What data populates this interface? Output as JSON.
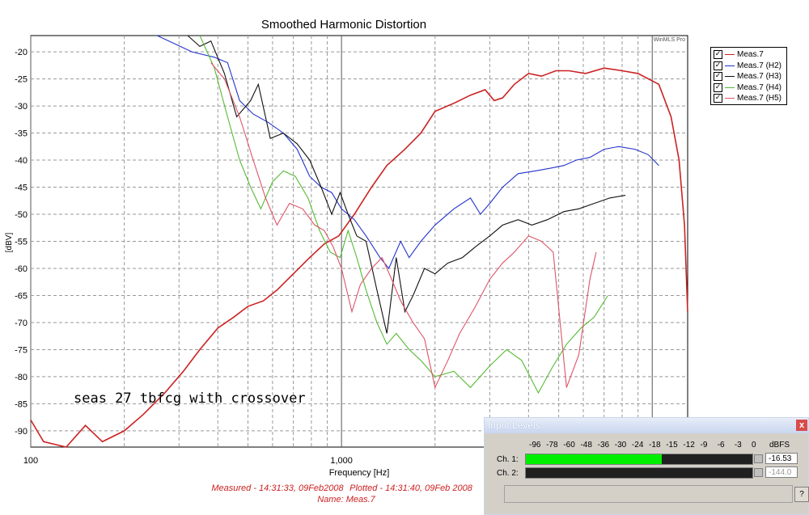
{
  "chart_data": {
    "type": "line",
    "title": "Smoothed Harmonic Distortion",
    "xlabel": "Frequency [Hz]",
    "ylabel": "[dBV]",
    "x_scale": "log",
    "xlim": [
      100,
      13000
    ],
    "ylim": [
      -93,
      -17
    ],
    "x_ticks": [
      {
        "value": 100,
        "label": "100"
      },
      {
        "value": 1000,
        "label": "1,000"
      }
    ],
    "y_ticks": [
      -20,
      -25,
      -30,
      -35,
      -40,
      -45,
      -50,
      -55,
      -60,
      -65,
      -70,
      -75,
      -80,
      -85,
      -90
    ],
    "grid": true,
    "watermark": "WinMLS Pro",
    "annotation": "seas 27 tbfcg with crossover",
    "footer": {
      "measured": "Measured - 14:31:33, 09Feb2008",
      "plotted": "Plotted - 14:31:40, 09Feb 2008",
      "name": "Name: Meas.7"
    },
    "legend_position": "right",
    "series": [
      {
        "name": "Meas.7",
        "color": "#cc2222",
        "points": [
          [
            100,
            -88
          ],
          [
            110,
            -92
          ],
          [
            130,
            -93
          ],
          [
            150,
            -89
          ],
          [
            170,
            -92
          ],
          [
            200,
            -90
          ],
          [
            230,
            -87
          ],
          [
            270,
            -83
          ],
          [
            310,
            -79
          ],
          [
            350,
            -75
          ],
          [
            400,
            -71
          ],
          [
            450,
            -69
          ],
          [
            500,
            -67
          ],
          [
            560,
            -66
          ],
          [
            620,
            -64
          ],
          [
            700,
            -61
          ],
          [
            790,
            -58
          ],
          [
            880,
            -55.5
          ],
          [
            980,
            -54
          ],
          [
            1100,
            -50
          ],
          [
            1250,
            -45
          ],
          [
            1400,
            -41
          ],
          [
            1600,
            -38
          ],
          [
            1800,
            -35
          ],
          [
            2000,
            -31
          ],
          [
            2300,
            -29.5
          ],
          [
            2600,
            -28
          ],
          [
            2900,
            -27
          ],
          [
            3100,
            -29
          ],
          [
            3300,
            -28.5
          ],
          [
            3600,
            -26
          ],
          [
            4000,
            -24
          ],
          [
            4400,
            -24.5
          ],
          [
            4900,
            -23.5
          ],
          [
            5400,
            -23.5
          ],
          [
            6100,
            -24
          ],
          [
            7000,
            -23
          ],
          [
            8000,
            -23.5
          ],
          [
            9000,
            -24
          ],
          [
            10500,
            -26
          ],
          [
            11500,
            -32
          ],
          [
            12200,
            -40
          ],
          [
            12700,
            -52
          ],
          [
            13000,
            -68
          ]
        ]
      },
      {
        "name": "Meas.7 (H2)",
        "color": "#2233cc",
        "points": [
          [
            255,
            -17
          ],
          [
            290,
            -18.5
          ],
          [
            330,
            -20
          ],
          [
            390,
            -21
          ],
          [
            430,
            -22
          ],
          [
            470,
            -29
          ],
          [
            520,
            -31.5
          ],
          [
            580,
            -33
          ],
          [
            650,
            -35
          ],
          [
            720,
            -38
          ],
          [
            790,
            -43
          ],
          [
            860,
            -45
          ],
          [
            930,
            -46
          ],
          [
            1000,
            -49
          ],
          [
            1100,
            -51
          ],
          [
            1200,
            -54
          ],
          [
            1330,
            -58
          ],
          [
            1420,
            -60
          ],
          [
            1550,
            -55
          ],
          [
            1650,
            -58
          ],
          [
            1800,
            -55
          ],
          [
            2000,
            -52
          ],
          [
            2300,
            -49
          ],
          [
            2600,
            -47
          ],
          [
            2800,
            -50
          ],
          [
            3000,
            -48
          ],
          [
            3300,
            -45
          ],
          [
            3700,
            -42.5
          ],
          [
            4200,
            -42
          ],
          [
            4700,
            -41.5
          ],
          [
            5200,
            -41
          ],
          [
            5700,
            -40
          ],
          [
            6300,
            -39.5
          ],
          [
            7000,
            -38
          ],
          [
            7800,
            -37.5
          ],
          [
            8800,
            -38
          ],
          [
            9700,
            -39
          ],
          [
            10500,
            -41
          ]
        ]
      },
      {
        "name": "Meas.7 (H3)",
        "color": "#111111",
        "points": [
          [
            320,
            -17
          ],
          [
            350,
            -19
          ],
          [
            380,
            -18
          ],
          [
            420,
            -24
          ],
          [
            460,
            -32
          ],
          [
            510,
            -29
          ],
          [
            540,
            -26
          ],
          [
            590,
            -36
          ],
          [
            650,
            -35
          ],
          [
            720,
            -37
          ],
          [
            790,
            -40
          ],
          [
            860,
            -45
          ],
          [
            930,
            -50
          ],
          [
            990,
            -46
          ],
          [
            1050,
            -50
          ],
          [
            1120,
            -54
          ],
          [
            1200,
            -55
          ],
          [
            1300,
            -64
          ],
          [
            1400,
            -72
          ],
          [
            1500,
            -58
          ],
          [
            1600,
            -68
          ],
          [
            1700,
            -65
          ],
          [
            1850,
            -60
          ],
          [
            2000,
            -61
          ],
          [
            2200,
            -59
          ],
          [
            2450,
            -58
          ],
          [
            2700,
            -56
          ],
          [
            3000,
            -54
          ],
          [
            3300,
            -52
          ],
          [
            3700,
            -51
          ],
          [
            4100,
            -52
          ],
          [
            4600,
            -51
          ],
          [
            5200,
            -49.5
          ],
          [
            5800,
            -49
          ],
          [
            6500,
            -48
          ],
          [
            7300,
            -47
          ],
          [
            8200,
            -46.5
          ]
        ]
      },
      {
        "name": "Meas.7 (H4)",
        "color": "#55bb33",
        "points": [
          [
            350,
            -17
          ],
          [
            390,
            -23
          ],
          [
            430,
            -32
          ],
          [
            470,
            -40
          ],
          [
            510,
            -45
          ],
          [
            550,
            -49
          ],
          [
            600,
            -44
          ],
          [
            650,
            -42
          ],
          [
            710,
            -43
          ],
          [
            780,
            -47
          ],
          [
            850,
            -53
          ],
          [
            920,
            -57
          ],
          [
            990,
            -58
          ],
          [
            1050,
            -53
          ],
          [
            1120,
            -58
          ],
          [
            1200,
            -64
          ],
          [
            1300,
            -70
          ],
          [
            1400,
            -74
          ],
          [
            1500,
            -72
          ],
          [
            1650,
            -75
          ],
          [
            1800,
            -77
          ],
          [
            2000,
            -80
          ],
          [
            2300,
            -79
          ],
          [
            2600,
            -82
          ],
          [
            3000,
            -78
          ],
          [
            3400,
            -75
          ],
          [
            3800,
            -77
          ],
          [
            4300,
            -83
          ],
          [
            4800,
            -78
          ],
          [
            5300,
            -74
          ],
          [
            5900,
            -71
          ],
          [
            6500,
            -69
          ],
          [
            7200,
            -65
          ]
        ]
      },
      {
        "name": "Meas.7 (H5)",
        "color": "#dd5566",
        "points": [
          [
            380,
            -22
          ],
          [
            420,
            -25
          ],
          [
            470,
            -32
          ],
          [
            520,
            -40
          ],
          [
            570,
            -47
          ],
          [
            620,
            -52
          ],
          [
            680,
            -48
          ],
          [
            750,
            -49
          ],
          [
            820,
            -52
          ],
          [
            880,
            -53
          ],
          [
            940,
            -56
          ],
          [
            1000,
            -60
          ],
          [
            1080,
            -68
          ],
          [
            1150,
            -63
          ],
          [
            1250,
            -60
          ],
          [
            1350,
            -58
          ],
          [
            1450,
            -62
          ],
          [
            1550,
            -66
          ],
          [
            1700,
            -70
          ],
          [
            1850,
            -73
          ],
          [
            2000,
            -82
          ],
          [
            2200,
            -77
          ],
          [
            2400,
            -72
          ],
          [
            2700,
            -67
          ],
          [
            3000,
            -62
          ],
          [
            3300,
            -59
          ],
          [
            3600,
            -57
          ],
          [
            4000,
            -54
          ],
          [
            4400,
            -55
          ],
          [
            4800,
            -57
          ],
          [
            5300,
            -82
          ],
          [
            5800,
            -76
          ],
          [
            6300,
            -62
          ],
          [
            6600,
            -57
          ]
        ]
      }
    ]
  },
  "input_levels": {
    "title": "Input Levels",
    "close_label": "x",
    "scale_labels": [
      "-96",
      "-78",
      "-60",
      "-48",
      "-36",
      "-30",
      "-24",
      "-18",
      "-15",
      "-12",
      "-9",
      "-6",
      "-3",
      "0"
    ],
    "unit_label": "dBFS",
    "channels": [
      {
        "label": "Ch. 1:",
        "level_fraction": 0.6,
        "value": "-16.53"
      },
      {
        "label": "Ch. 2:",
        "level_fraction": 0.0,
        "value": "-144.0"
      }
    ],
    "help_label": "?"
  }
}
